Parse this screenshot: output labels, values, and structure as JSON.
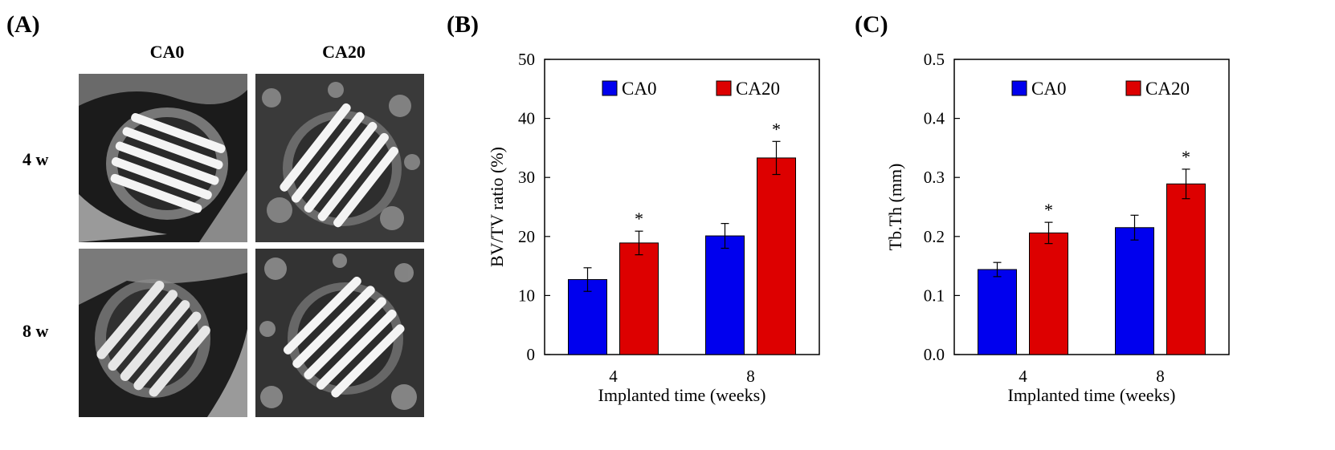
{
  "panels": {
    "a": {
      "label": "(A)",
      "columns": [
        "CA0",
        "CA20"
      ],
      "rows": [
        "4 w",
        "8 w"
      ]
    },
    "b": {
      "label": "(B)"
    },
    "c": {
      "label": "(C)"
    }
  },
  "colors": {
    "ca0": "#0000ee",
    "ca20": "#dd0000"
  },
  "chart_data": [
    {
      "type": "bar",
      "title": "",
      "xlabel": "Implanted time (weeks)",
      "ylabel": "BV/TV ratio (%)",
      "categories": [
        "4",
        "8"
      ],
      "ylim": [
        0,
        50
      ],
      "yticks": [
        "0",
        "10",
        "20",
        "30",
        "40",
        "50"
      ],
      "series": [
        {
          "name": "CA0",
          "values": [
            12.7,
            20.1
          ],
          "errors": [
            2.0,
            2.1
          ]
        },
        {
          "name": "CA20",
          "values": [
            18.9,
            33.3
          ],
          "errors": [
            2.0,
            2.8
          ]
        }
      ],
      "annotations": [
        "*",
        "*"
      ],
      "legend": "top"
    },
    {
      "type": "bar",
      "title": "",
      "xlabel": "Implanted time (weeks)",
      "ylabel": "Tb.Th (mm)",
      "categories": [
        "4",
        "8"
      ],
      "ylim": [
        0,
        0.5
      ],
      "yticks": [
        "0.0",
        "0.1",
        "0.2",
        "0.3",
        "0.4",
        "0.5"
      ],
      "series": [
        {
          "name": "CA0",
          "values": [
            0.144,
            0.215
          ],
          "errors": [
            0.012,
            0.021
          ]
        },
        {
          "name": "CA20",
          "values": [
            0.206,
            0.289
          ],
          "errors": [
            0.018,
            0.025
          ]
        }
      ],
      "annotations": [
        "*",
        "*"
      ],
      "legend": "top"
    }
  ]
}
